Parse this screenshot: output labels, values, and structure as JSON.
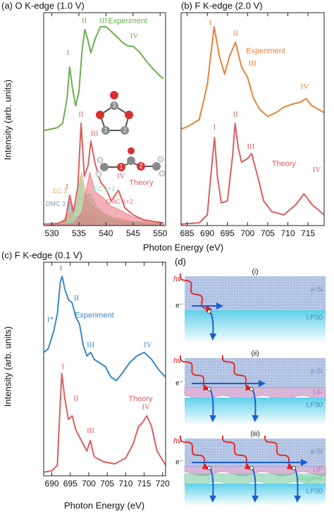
{
  "chart_data": [
    {
      "type": "line",
      "title": "(a) O K-edge (1.0 V)",
      "ylabel": "Intensity (arb. units)",
      "xlabel": "Photon Energy (eV)",
      "xlim": [
        528.5,
        551
      ],
      "xticks": [
        530,
        535,
        540,
        545,
        550
      ],
      "ylim": [
        0,
        10
      ],
      "series": [
        {
          "name": "Experiment",
          "color": "#6ab04c",
          "label_at": [
            544,
            9.6
          ],
          "x": [
            528.6,
            530,
            531,
            532,
            532.8,
            533.3,
            533.8,
            534.4,
            535,
            535.6,
            536.1,
            536.6,
            537.2,
            538,
            539,
            540,
            541,
            542,
            543,
            544,
            545,
            546,
            547,
            548,
            549,
            550,
            550.6
          ],
          "values": [
            4.47,
            4.54,
            4.6,
            4.8,
            5.96,
            7.45,
            6.46,
            5.63,
            6.29,
            8.28,
            9.21,
            8.77,
            8.11,
            8.77,
            9.34,
            9.34,
            9.11,
            8.87,
            8.61,
            8.44,
            8.41,
            8.21,
            7.88,
            7.55,
            7.28,
            7.02,
            6.89
          ]
        },
        {
          "name": "Theory",
          "color": "#d9605e",
          "label_at": [
            546.5,
            2.0
          ],
          "x": [
            528.6,
            531,
            532.5,
            533.3,
            534,
            534.8,
            535.4,
            536,
            536.7,
            537.2,
            538,
            539,
            540,
            541,
            542.3,
            543.5,
            545,
            547,
            550.6
          ],
          "values": [
            0.07,
            0.1,
            0.23,
            1.42,
            0.66,
            1.82,
            4.8,
            2.32,
            2.81,
            3.97,
            2.91,
            2.05,
            1.72,
            1.16,
            1.66,
            0.83,
            0.5,
            0.26,
            0.13
          ]
        },
        {
          "name": "DMC 3",
          "color": "#7f97b8",
          "fill": true,
          "label_at": [
            530.7,
            1.0
          ],
          "x": [
            528.6,
            532,
            532.8,
            533.3,
            534,
            534.8,
            536,
            538,
            540,
            545,
            550.6
          ],
          "values": [
            0,
            0.1,
            0.6,
            1.16,
            0.45,
            0.4,
            0.6,
            0.45,
            0.3,
            0.1,
            0
          ]
        },
        {
          "name": "EC 3",
          "color": "#e8a86a",
          "fill": true,
          "label_at": [
            531.5,
            1.6
          ],
          "x": [
            528.6,
            531,
            533,
            534.5,
            535.5,
            536.5,
            538,
            541,
            545,
            550.6
          ],
          "values": [
            0,
            0,
            0.5,
            1.0,
            2.5,
            1.2,
            0.8,
            0.4,
            0.2,
            0.1
          ]
        },
        {
          "name": "EC 1+2",
          "color": "#8fd8b0",
          "fill": true,
          "label_at": [
            539.7,
            1.7
          ],
          "x": [
            528.6,
            533,
            534.5,
            535.2,
            536,
            537,
            538.5,
            540,
            543,
            550.6
          ],
          "values": [
            0,
            0.1,
            0.8,
            2.3,
            1.4,
            1.5,
            0.8,
            0.5,
            0.2,
            0.05
          ]
        },
        {
          "name": "DMC 1+2",
          "color": "#e8707a",
          "fill": true,
          "label_at": [
            542.5,
            1.1
          ],
          "x": [
            528.6,
            534,
            535.5,
            537,
            538,
            539.5,
            541,
            542,
            545,
            550.6
          ],
          "values": [
            0,
            0.1,
            0.6,
            2.5,
            1.6,
            1.3,
            0.9,
            0.8,
            0.4,
            0.1
          ]
        }
      ],
      "annotations": [
        {
          "text": "I",
          "x": 533,
          "y": 8.1,
          "color": "#6ab04c"
        },
        {
          "text": "II",
          "x": 536,
          "y": 9.6,
          "color": "#6ab04c"
        },
        {
          "text": "III",
          "x": 539.5,
          "y": 9.6,
          "color": "#6ab04c"
        },
        {
          "text": "IV",
          "x": 545.2,
          "y": 8.9,
          "color": "#6ab04c"
        },
        {
          "text": "I",
          "x": 532.8,
          "y": 1.8,
          "color": "#d9605e"
        },
        {
          "text": "II",
          "x": 535.4,
          "y": 5.2,
          "color": "#d9605e"
        },
        {
          "text": "III",
          "x": 537.9,
          "y": 4.3,
          "color": "#d9605e"
        },
        {
          "text": "IV",
          "x": 542.8,
          "y": 2.3,
          "color": "#d9605e"
        }
      ],
      "molecule_labels": [
        "3",
        "2",
        "1",
        "1",
        "2"
      ]
    },
    {
      "type": "line",
      "title": "(b) F K-edge (2.0 V)",
      "xlim": [
        683.5,
        719
      ],
      "xticks": [
        685,
        690,
        695,
        700,
        705,
        710,
        715
      ],
      "ylim": [
        0,
        10
      ],
      "series": [
        {
          "name": "Experiment",
          "color": "#e8803a",
          "label_at": [
            704.5,
            8.2
          ],
          "x": [
            683.5,
            685,
            688,
            690,
            691.7,
            693,
            694.3,
            695.5,
            697,
            698.5,
            700,
            701.5,
            703,
            705,
            707,
            709,
            711,
            713,
            714.5,
            716,
            719
          ],
          "values": [
            4.54,
            4.64,
            4.97,
            6.62,
            9.34,
            7.95,
            7.12,
            7.95,
            8.61,
            7.45,
            6.95,
            5.96,
            5.46,
            5.13,
            5.3,
            5.56,
            5.7,
            5.79,
            5.96,
            5.63,
            5.3
          ]
        },
        {
          "name": "Theory",
          "color": "#d9605e",
          "label_at": [
            709,
            2.9
          ],
          "x": [
            683.5,
            688,
            690,
            691.2,
            691.8,
            692.5,
            693.5,
            695,
            696.3,
            696.9,
            697.7,
            698.5,
            700,
            701,
            702.5,
            704,
            706,
            709,
            712,
            714,
            716,
            719
          ],
          "values": [
            0.07,
            0.13,
            0.5,
            2.98,
            4.14,
            2.32,
            1.06,
            1.16,
            3.31,
            4.8,
            3.64,
            2.98,
            3.15,
            3.38,
            2.32,
            1.16,
            0.66,
            0.5,
            0.99,
            1.49,
            0.99,
            0.5
          ]
        }
      ],
      "annotations": [
        {
          "text": "I",
          "x": 690.8,
          "y": 9.5,
          "color": "#e8803a"
        },
        {
          "text": "II",
          "x": 697,
          "y": 9.0,
          "color": "#e8803a"
        },
        {
          "text": "III",
          "x": 701.2,
          "y": 7.6,
          "color": "#e8803a"
        },
        {
          "text": "IV",
          "x": 714.2,
          "y": 6.5,
          "color": "#e8803a"
        },
        {
          "text": "I",
          "x": 691.8,
          "y": 4.6,
          "color": "#d9605e"
        },
        {
          "text": "II",
          "x": 697,
          "y": 5.2,
          "color": "#d9605e"
        },
        {
          "text": "III",
          "x": 700.8,
          "y": 3.7,
          "color": "#d9605e"
        },
        {
          "text": "IV",
          "x": 717.2,
          "y": 2.6,
          "color": "#d9605e"
        }
      ]
    },
    {
      "type": "line",
      "title": "(c) F K-edge (0.1 V)",
      "ylabel": "Intensity (arb. units)",
      "xlabel": "Photon Energy (eV)",
      "xlim": [
        687.8,
        720.8
      ],
      "xticks": [
        690,
        695,
        700,
        705,
        710,
        715,
        720
      ],
      "ylim": [
        0,
        10
      ],
      "series": [
        {
          "name": "Experiment",
          "color": "#3a87c4",
          "label_at": [
            701.5,
            7.5
          ],
          "x": [
            687.8,
            689,
            690.5,
            691.5,
            692.3,
            692.8,
            693.5,
            694.5,
            695.5,
            696.5,
            697.5,
            698.5,
            699.5,
            700.5,
            701.5,
            703,
            704.5,
            706,
            707.5,
            709,
            711,
            713,
            715,
            717,
            719,
            720.8
          ],
          "values": [
            5.78,
            5.94,
            6.77,
            7.59,
            9.08,
            9.34,
            8.75,
            8.25,
            8.09,
            7.43,
            7.1,
            6.11,
            5.61,
            5.78,
            5.45,
            5.28,
            5.12,
            4.62,
            4.46,
            4.79,
            5.28,
            5.61,
            5.78,
            5.45,
            4.95,
            4.62
          ]
        },
        {
          "name": "Theory",
          "color": "#d9605e",
          "label_at": [
            714,
            3.6
          ],
          "x": [
            687.8,
            690,
            691.5,
            692.2,
            692.7,
            693.5,
            694.5,
            695.5,
            696.5,
            698,
            699.5,
            700.4,
            701.5,
            704,
            707,
            710,
            712,
            713.5,
            714.5,
            715.7,
            717,
            718.5,
            720.8
          ],
          "values": [
            0.17,
            0.23,
            0.5,
            3.14,
            4.79,
            3.63,
            2.64,
            2.81,
            2.15,
            1.65,
            1.16,
            1.65,
            0.89,
            0.66,
            0.56,
            0.83,
            1.49,
            2.31,
            2.48,
            2.81,
            2.31,
            1.16,
            0.5
          ]
        }
      ],
      "annotations": [
        {
          "text": "I*",
          "x": 689.6,
          "y": 7.3,
          "color": "#3a87c4"
        },
        {
          "text": "I",
          "x": 692.5,
          "y": 9.7,
          "color": "#3a87c4"
        },
        {
          "text": "II",
          "x": 696.7,
          "y": 8.3,
          "color": "#3a87c4"
        },
        {
          "text": "III",
          "x": 700.5,
          "y": 6.1,
          "color": "#3a87c4"
        },
        {
          "text": "IV",
          "x": 716,
          "y": 6.1,
          "color": "#3a87c4"
        },
        {
          "text": "I",
          "x": 693,
          "y": 5.1,
          "color": "#d9605e"
        },
        {
          "text": "II",
          "x": 696.5,
          "y": 3.6,
          "color": "#d9605e"
        },
        {
          "text": "III",
          "x": 700.5,
          "y": 2.1,
          "color": "#d9605e"
        },
        {
          "text": "IV",
          "x": 715.5,
          "y": 3.2,
          "color": "#d9605e"
        }
      ]
    }
  ],
  "diagram": {
    "label": "(d)",
    "panels": [
      {
        "label": "(i)",
        "photon": "hv",
        "electron": "e⁻",
        "layers": [
          {
            "name": "a-Si",
            "color": "#6f8fc0"
          },
          {
            "name": "LP30",
            "color": "#4a8fc8"
          }
        ]
      },
      {
        "label": "(ii)",
        "photon": "hv",
        "electron": "e⁻",
        "layers": [
          {
            "name": "a-Si",
            "color": "#6f8fc0"
          },
          {
            "name": "LiF",
            "color": "#b87ab8"
          },
          {
            "name": "LP30",
            "color": "#4a8fc8"
          }
        ]
      },
      {
        "label": "(iii)",
        "photon": "hv",
        "electron": "e⁻",
        "layers": [
          {
            "name": "a-Si",
            "color": "#6f8fc0"
          },
          {
            "name": "LiF",
            "color": "#b87ab8"
          },
          {
            "name": "Organic",
            "color": "#6fc79a"
          },
          {
            "name": "LP30",
            "color": "#4a8fc8"
          }
        ]
      }
    ]
  }
}
